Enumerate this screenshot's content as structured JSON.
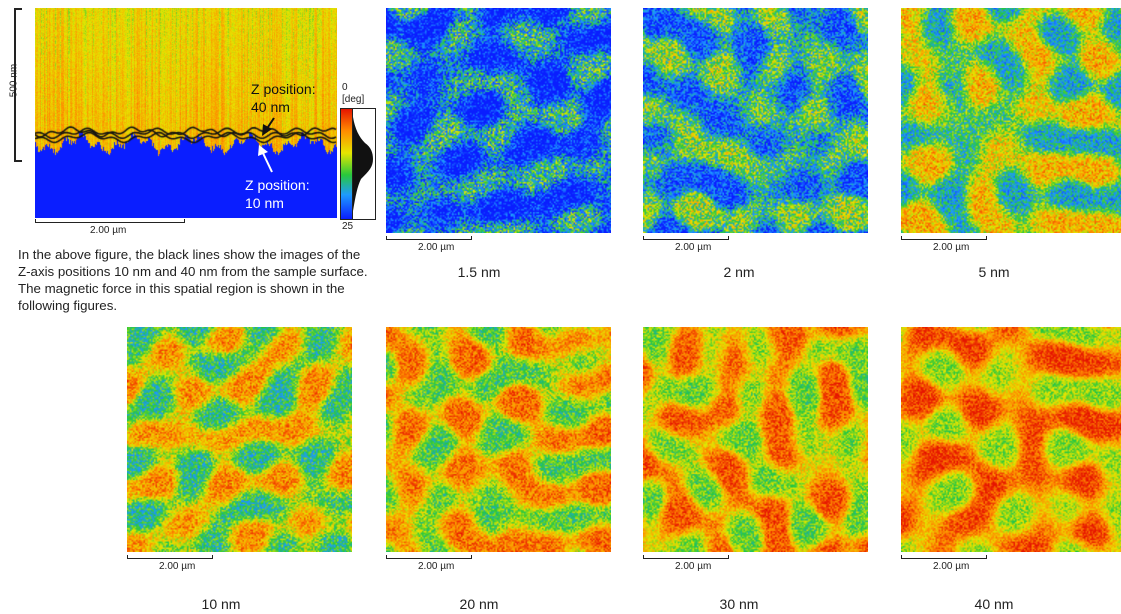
{
  "cross_section": {
    "vertical_scale_label": "500 nm",
    "scale_bar_label": "2.00 µm",
    "z_label_upper": "Z position:\n40 nm",
    "z_label_lower": "Z position:\n10 nm",
    "colorbar": {
      "top_label": "0",
      "unit_label": "[deg]",
      "bottom_label": "25"
    }
  },
  "description": "In the above figure, the black lines show the images of the Z-axis positions 10 nm and 40 nm from the sample surface. The magnetic force in this spatial region is shown in the following figures.",
  "panels": [
    {
      "caption": "1.5 nm",
      "scale_label": "2.00 µm",
      "seed": 11,
      "level": 0.15
    },
    {
      "caption": "2 nm",
      "scale_label": "2.00 µm",
      "seed": 23,
      "level": 0.3
    },
    {
      "caption": "5 nm",
      "scale_label": "2.00 µm",
      "seed": 37,
      "level": 0.5
    },
    {
      "caption": "10 nm",
      "scale_label": "2.00 µm",
      "seed": 41,
      "level": 0.58
    },
    {
      "caption": "20 nm",
      "scale_label": "2.00 µm",
      "seed": 53,
      "level": 0.64
    },
    {
      "caption": "30 nm",
      "scale_label": "2.00 µm",
      "seed": 67,
      "level": 0.68
    },
    {
      "caption": "40 nm",
      "scale_label": "2.00 µm",
      "seed": 79,
      "level": 0.72
    }
  ],
  "colors": {
    "blue": "#0a1eff",
    "green": "#28c83c",
    "yellow": "#e6e600",
    "orange": "#ff8c00",
    "red": "#e61400",
    "line": "#111111"
  }
}
